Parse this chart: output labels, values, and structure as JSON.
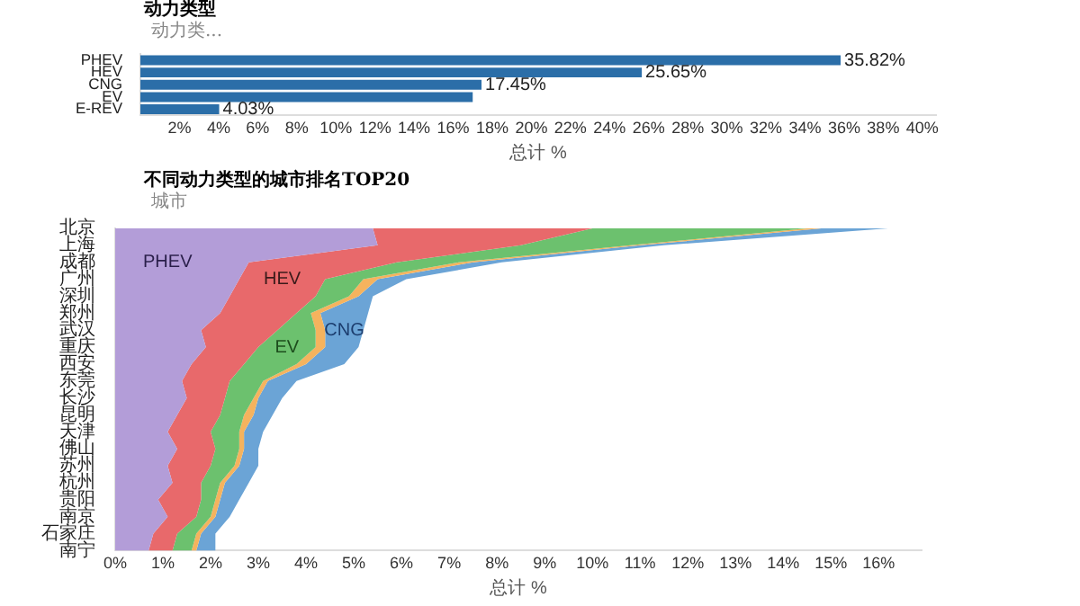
{
  "chart_data": [
    {
      "type": "bar",
      "orientation": "horizontal",
      "title": "动力类型",
      "ylabel": "动力类...",
      "xlabel": "总计 %",
      "categories": [
        "PHEV",
        "HEV",
        "CNG",
        "EV",
        "E-REV"
      ],
      "values": [
        35.82,
        25.65,
        17.45,
        17.0,
        4.03
      ],
      "color": "#2b6ea8",
      "value_labels": [
        "35.82%",
        "25.65%",
        "17.45%",
        null,
        "4.03%"
      ],
      "xlim": [
        0,
        40.7
      ],
      "xticks": [
        {
          "value": 2,
          "label": "2%"
        },
        {
          "value": 4,
          "label": "4%"
        },
        {
          "value": 6,
          "label": "6%"
        },
        {
          "value": 8,
          "label": "8%"
        },
        {
          "value": 10,
          "label": "10%"
        },
        {
          "value": 12,
          "label": "12%"
        },
        {
          "value": 14,
          "label": "14%"
        },
        {
          "value": 16,
          "label": "16%"
        },
        {
          "value": 18,
          "label": "18%"
        },
        {
          "value": 20,
          "label": "20%"
        },
        {
          "value": 22,
          "label": "22%"
        },
        {
          "value": 24,
          "label": "24%"
        },
        {
          "value": 26,
          "label": "26%"
        },
        {
          "value": 28,
          "label": "28%"
        },
        {
          "value": 30,
          "label": "30%"
        },
        {
          "value": 32,
          "label": "32%"
        },
        {
          "value": 34,
          "label": "34%"
        },
        {
          "value": 36,
          "label": "36%"
        },
        {
          "value": 38,
          "label": "38%"
        },
        {
          "value": 40,
          "label": "40%"
        }
      ]
    },
    {
      "type": "area",
      "orientation": "horizontal",
      "stacked": true,
      "title": "不同动力类型的城市排名TOP20",
      "ylabel": "城市",
      "xlabel": "总计 %",
      "categories": [
        "北京",
        "上海",
        "成都",
        "广州",
        "深圳",
        "郑州",
        "武汉",
        "重庆",
        "西安",
        "东莞",
        "长沙",
        "昆明",
        "天津",
        "佛山",
        "苏州",
        "杭州",
        "贵阳",
        "南京",
        "石家庄",
        "南宁"
      ],
      "xlim": [
        0,
        16.9
      ],
      "xticks": [
        {
          "value": 0,
          "label": "0%"
        },
        {
          "value": 1,
          "label": "1%"
        },
        {
          "value": 2,
          "label": "2%"
        },
        {
          "value": 3,
          "label": "3%"
        },
        {
          "value": 4,
          "label": "4%"
        },
        {
          "value": 5,
          "label": "5%"
        },
        {
          "value": 6,
          "label": "6%"
        },
        {
          "value": 7,
          "label": "7%"
        },
        {
          "value": 8,
          "label": "8%"
        },
        {
          "value": 9,
          "label": "9%"
        },
        {
          "value": 10,
          "label": "10%"
        },
        {
          "value": 11,
          "label": "11%"
        },
        {
          "value": 12,
          "label": "12%"
        },
        {
          "value": 13,
          "label": "13%"
        },
        {
          "value": 14,
          "label": "14%"
        },
        {
          "value": 15,
          "label": "15%"
        },
        {
          "value": 16,
          "label": "16%"
        }
      ],
      "series": [
        {
          "name": "PHEV",
          "color": "#b39dd8",
          "values": [
            5.4,
            5.5,
            2.8,
            2.6,
            2.4,
            2.2,
            1.8,
            1.9,
            1.6,
            1.4,
            1.5,
            1.3,
            1.1,
            1.3,
            1.1,
            1.2,
            0.9,
            1.1,
            0.8,
            0.7
          ]
        },
        {
          "name": "HEV",
          "color": "#e8696b",
          "values": [
            4.6,
            3.0,
            3.1,
            1.8,
            1.8,
            1.6,
            1.6,
            1.1,
            1.1,
            1.0,
            0.8,
            0.9,
            0.9,
            0.8,
            0.9,
            0.6,
            0.9,
            0.6,
            0.5,
            0.5
          ]
        },
        {
          "name": "EV",
          "color": "#6cc16e",
          "values": [
            4.5,
            2.3,
            1.3,
            0.8,
            0.7,
            0.3,
            0.8,
            1.2,
            1.1,
            0.7,
            0.6,
            0.5,
            0.6,
            0.5,
            0.5,
            0.4,
            0.3,
            0.3,
            0.4,
            0.4
          ]
        },
        {
          "color": "#f5b35e",
          "values": [
            0.3,
            0.2,
            0.3,
            0.3,
            0.2,
            0.2,
            0.2,
            0.2,
            0.2,
            0.1,
            0.1,
            0.2,
            0.1,
            0.1,
            0.1,
            0.1,
            0.1,
            0.1,
            0.1,
            0.1
          ]
        },
        {
          "name": "CNG",
          "color": "#6ba4d6",
          "values": [
            1.4,
            0.5,
            0.6,
            0.6,
            0.3,
            1.0,
            0.8,
            0.7,
            0.8,
            0.6,
            0.5,
            0.4,
            0.4,
            0.3,
            0.4,
            0.5,
            0.4,
            0.3,
            0.3,
            0.4
          ]
        }
      ]
    }
  ]
}
